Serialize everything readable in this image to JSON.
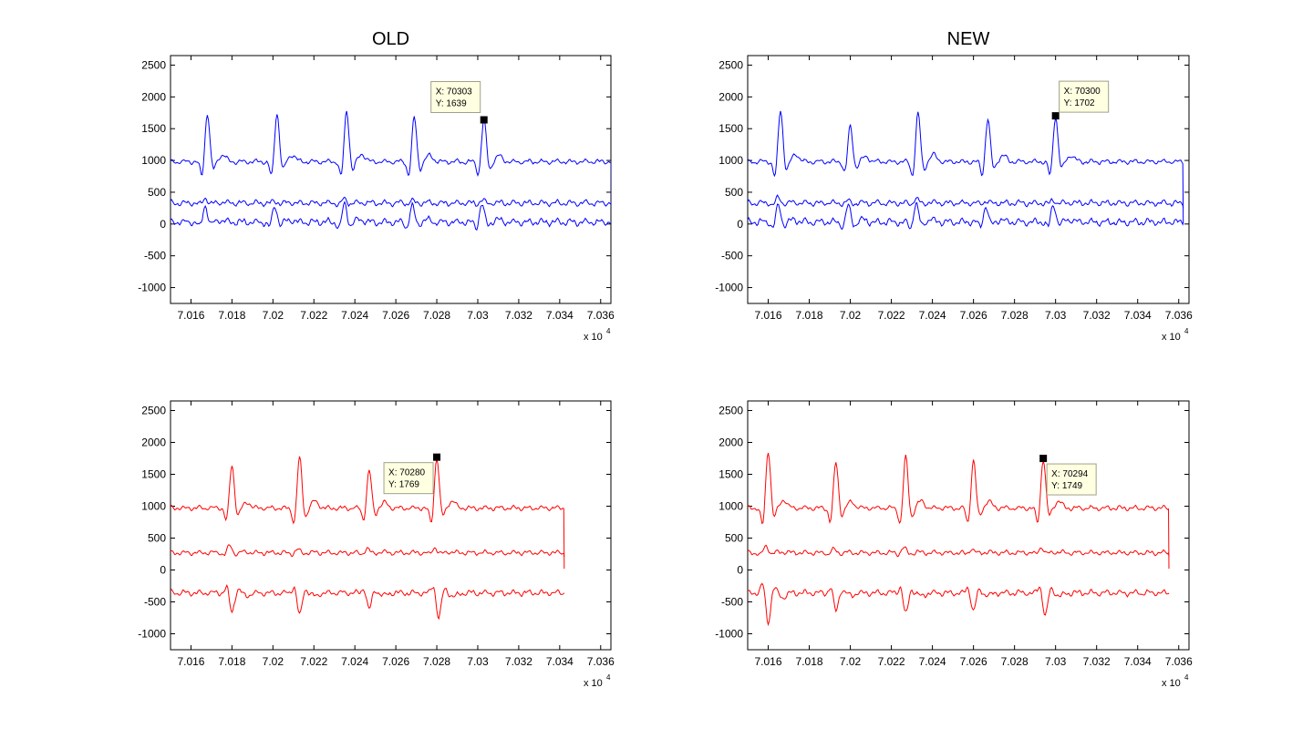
{
  "colors": {
    "blue": "#0000ff",
    "red": "#ff0000",
    "tooltip_bg": "#ffffe1",
    "tooltip_border": "#a0a08c"
  },
  "chart_data": [
    {
      "type": "line",
      "title": "OLD",
      "xlim": [
        70150,
        70365
      ],
      "ylim": [
        -1250,
        2650
      ],
      "xticks": [
        70160,
        70180,
        70200,
        70220,
        70240,
        70260,
        70280,
        70300,
        70320,
        70340,
        70360
      ],
      "xtick_labels": [
        "7.016",
        "7.018",
        "7.02",
        "7.022",
        "7.024",
        "7.026",
        "7.028",
        "7.03",
        "7.032",
        "7.034",
        "7.036"
      ],
      "yticks": [
        -1000,
        -500,
        0,
        500,
        1000,
        1500,
        2000,
        2500
      ],
      "ytick_labels": [
        "-1000",
        "-500",
        "0",
        "500",
        "1000",
        "1500",
        "2000",
        "2500"
      ],
      "x_exponent": {
        "base": "x 10",
        "power": "4"
      },
      "color": "#0000ff",
      "x_end": 70365,
      "series": [
        {
          "baseline": 980,
          "noise": 40,
          "drop": 1,
          "beats": [
            [
              70168,
              1750
            ],
            [
              70202,
              1750
            ],
            [
              70236,
              1800
            ],
            [
              70269,
              1680
            ],
            [
              70303,
              1639
            ]
          ]
        },
        {
          "baseline": 330,
          "noise": 50,
          "drop": 0.3,
          "beats": [
            [
              70167,
              420
            ],
            [
              70201,
              360
            ],
            [
              70235,
              400
            ],
            [
              70268,
              360
            ],
            [
              70302,
              380
            ]
          ]
        },
        {
          "baseline": 30,
          "noise": 60,
          "drop": 0,
          "beats": [
            [
              70167,
              300
            ],
            [
              70201,
              280
            ],
            [
              70235,
              320
            ],
            [
              70268,
              280
            ],
            [
              70302,
              320
            ]
          ]
        }
      ],
      "datatip": {
        "x_label": "X: 70303",
        "y_label": "Y: 1639",
        "x": 70303,
        "y": 1639,
        "placement": "top-left"
      }
    },
    {
      "type": "line",
      "title": "NEW",
      "xlim": [
        70150,
        70365
      ],
      "ylim": [
        -1250,
        2650
      ],
      "xticks": [
        70160,
        70180,
        70200,
        70220,
        70240,
        70260,
        70280,
        70300,
        70320,
        70340,
        70360
      ],
      "xtick_labels": [
        "7.016",
        "7.018",
        "7.02",
        "7.022",
        "7.024",
        "7.026",
        "7.028",
        "7.03",
        "7.032",
        "7.034",
        "7.036"
      ],
      "yticks": [
        -1000,
        -500,
        0,
        500,
        1000,
        1500,
        2000,
        2500
      ],
      "ytick_labels": [
        "-1000",
        "-500",
        "0",
        "500",
        "1000",
        "1500",
        "2000",
        "2500"
      ],
      "x_exponent": {
        "base": "x 10",
        "power": "4"
      },
      "color": "#0000ff",
      "x_end": 70362,
      "series": [
        {
          "baseline": 980,
          "noise": 40,
          "drop": 1,
          "beats": [
            [
              70166,
              1800
            ],
            [
              70200,
              1540
            ],
            [
              70233,
              1740
            ],
            [
              70267,
              1650
            ],
            [
              70300,
              1702
            ]
          ]
        },
        {
          "baseline": 330,
          "noise": 50,
          "drop": 0.3,
          "beats": [
            [
              70165,
              420
            ],
            [
              70199,
              360
            ],
            [
              70232,
              400
            ],
            [
              70266,
              360
            ],
            [
              70299,
              380
            ]
          ]
        },
        {
          "baseline": 30,
          "noise": 60,
          "drop": 0,
          "beats": [
            [
              70165,
              300
            ],
            [
              70199,
              280
            ],
            [
              70232,
              320
            ],
            [
              70266,
              280
            ],
            [
              70299,
              320
            ]
          ]
        }
      ],
      "datatip": {
        "x_label": "X: 70300",
        "y_label": "Y: 1702",
        "x": 70300,
        "y": 1702,
        "placement": "top-right"
      }
    },
    {
      "type": "line",
      "title": "",
      "xlim": [
        70150,
        70365
      ],
      "ylim": [
        -1250,
        2650
      ],
      "xticks": [
        70160,
        70180,
        70200,
        70220,
        70240,
        70260,
        70280,
        70300,
        70320,
        70340,
        70360
      ],
      "xtick_labels": [
        "7.016",
        "7.018",
        "7.02",
        "7.022",
        "7.024",
        "7.026",
        "7.028",
        "7.03",
        "7.032",
        "7.034",
        "7.036"
      ],
      "yticks": [
        -1000,
        -500,
        0,
        500,
        1000,
        1500,
        2000,
        2500
      ],
      "ytick_labels": [
        "-1000",
        "-500",
        "0",
        "500",
        "1000",
        "1500",
        "2000",
        "2500"
      ],
      "x_exponent": {
        "base": "x 10",
        "power": "4"
      },
      "color": "#ff0000",
      "x_end": 70342,
      "series": [
        {
          "baseline": 970,
          "noise": 40,
          "drop": 1,
          "beats": [
            [
              70180,
              1650
            ],
            [
              70213,
              1760
            ],
            [
              70247,
              1560
            ],
            [
              70280,
              1769
            ]
          ]
        },
        {
          "baseline": 270,
          "noise": 40,
          "drop": 0.3,
          "beats": [
            [
              70179,
              380
            ],
            [
              70212,
              320
            ],
            [
              70246,
              340
            ],
            [
              70279,
              360
            ]
          ]
        },
        {
          "baseline": -360,
          "noise": 50,
          "drop": 0,
          "beats": [
            [
              70180,
              -650
            ],
            [
              70213,
              -720
            ],
            [
              70247,
              -620
            ],
            [
              70281,
              -760
            ]
          ]
        }
      ],
      "datatip": {
        "x_label": "X: 70280",
        "y_label": "Y: 1769",
        "x": 70280,
        "y": 1769,
        "placement": "bottom-left"
      }
    },
    {
      "type": "line",
      "title": "",
      "xlim": [
        70150,
        70365
      ],
      "ylim": [
        -1250,
        2650
      ],
      "xticks": [
        70160,
        70180,
        70200,
        70220,
        70240,
        70260,
        70280,
        70300,
        70320,
        70340,
        70360
      ],
      "xtick_labels": [
        "7.016",
        "7.018",
        "7.02",
        "7.022",
        "7.024",
        "7.026",
        "7.028",
        "7.03",
        "7.032",
        "7.034",
        "7.036"
      ],
      "yticks": [
        -1000,
        -500,
        0,
        500,
        1000,
        1500,
        2000,
        2500
      ],
      "ytick_labels": [
        "-1000",
        "-500",
        "0",
        "500",
        "1000",
        "1500",
        "2000",
        "2500"
      ],
      "x_exponent": {
        "base": "x 10",
        "power": "4"
      },
      "color": "#ff0000",
      "x_end": 70355,
      "series": [
        {
          "baseline": 970,
          "noise": 40,
          "drop": 1,
          "beats": [
            [
              70160,
              1880
            ],
            [
              70193,
              1690
            ],
            [
              70227,
              1770
            ],
            [
              70260,
              1720
            ],
            [
              70294,
              1749
            ]
          ]
        },
        {
          "baseline": 270,
          "noise": 40,
          "drop": 0.3,
          "beats": [
            [
              70159,
              380
            ],
            [
              70192,
              320
            ],
            [
              70226,
              340
            ],
            [
              70259,
              330
            ],
            [
              70293,
              360
            ]
          ]
        },
        {
          "baseline": -360,
          "noise": 50,
          "drop": 0,
          "beats": [
            [
              70160,
              -820
            ],
            [
              70193,
              -650
            ],
            [
              70227,
              -700
            ],
            [
              70260,
              -640
            ],
            [
              70295,
              -720
            ]
          ]
        }
      ],
      "datatip": {
        "x_label": "X: 70294",
        "y_label": "Y: 1749",
        "x": 70294,
        "y": 1749,
        "placement": "bottom-right"
      }
    }
  ]
}
